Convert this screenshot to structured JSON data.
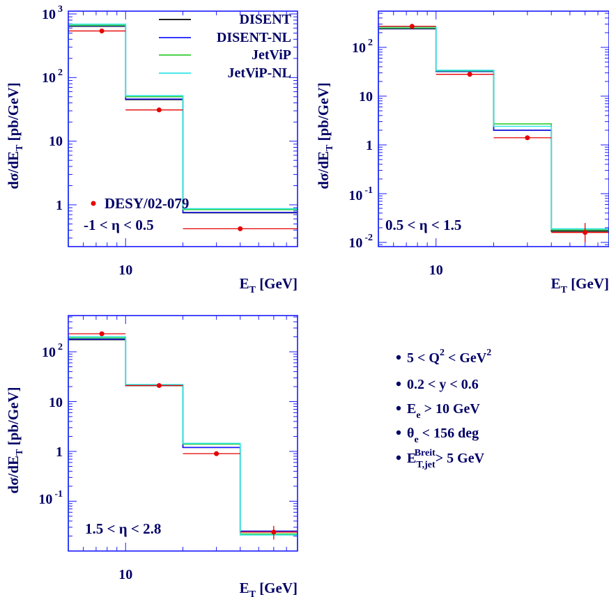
{
  "chart_data": [
    {
      "type": "step",
      "panel": "eta_low",
      "region_label": "-1 < η < 0.5",
      "xlabel": "E_T [GeV]",
      "ylabel": "dσ/dE_T [pb/GeV]",
      "xscale": "log",
      "yscale": "log",
      "xlim": [
        5,
        80
      ],
      "ylim": [
        0.28,
        1000
      ],
      "x_tick_labels": [
        "10"
      ],
      "y_tick_labels": [
        "1",
        "10",
        "10^2",
        "10^3"
      ],
      "bin_edges": [
        5,
        10,
        20,
        80
      ],
      "series": [
        {
          "name": "DISENT",
          "values": [
            640,
            45,
            0.75
          ]
        },
        {
          "name": "DISENT-NL",
          "values": [
            650,
            46,
            0.76
          ]
        },
        {
          "name": "JetViP",
          "values": [
            660,
            50,
            0.84
          ]
        },
        {
          "name": "JetViP-NL",
          "values": [
            690,
            52,
            0.87
          ]
        }
      ],
      "measurement": {
        "name": "DESY/02-079",
        "points": [
          {
            "x": 7.5,
            "y": 540,
            "xerr": [
              5,
              10
            ]
          },
          {
            "x": 15,
            "y": 31,
            "xerr": [
              10,
              20
            ]
          },
          {
            "x": 40,
            "y": 0.42,
            "xerr": [
              20,
              80
            ]
          }
        ]
      },
      "legend_position": "top-right"
    },
    {
      "type": "step",
      "panel": "eta_mid",
      "region_label": "0.5 < η < 1.5",
      "xlabel": "E_T [GeV]",
      "ylabel": "dσ/dE_T [pb/GeV]",
      "xscale": "log",
      "yscale": "log",
      "xlim": [
        5,
        80
      ],
      "ylim": [
        0.008,
        600
      ],
      "x_tick_labels": [
        "10"
      ],
      "y_tick_labels": [
        "10^-2",
        "10^-1",
        "1",
        "10",
        "10^2"
      ],
      "bin_edges": [
        5,
        10,
        20,
        40,
        80
      ],
      "series": [
        {
          "name": "DISENT",
          "values": [
            240,
            32,
            2.0,
            0.017
          ]
        },
        {
          "name": "DISENT-NL",
          "values": [
            245,
            32,
            2.0,
            0.018
          ]
        },
        {
          "name": "JetViP",
          "values": [
            250,
            33,
            2.7,
            0.018
          ]
        },
        {
          "name": "JetViP-NL",
          "values": [
            265,
            34,
            2.4,
            0.019
          ]
        }
      ],
      "measurement": {
        "name": "DESY/02-079",
        "points": [
          {
            "x": 7.5,
            "y": 270,
            "xerr": [
              5,
              10
            ]
          },
          {
            "x": 15,
            "y": 28,
            "xerr": [
              10,
              20
            ]
          },
          {
            "x": 30,
            "y": 1.4,
            "xerr": [
              20,
              40
            ]
          },
          {
            "x": 60,
            "y": 0.016,
            "xerr": [
              40,
              80
            ],
            "yerr": [
              0.01,
              0.025
            ]
          }
        ]
      }
    },
    {
      "type": "step",
      "panel": "eta_high",
      "region_label": "1.5 < η < 2.8",
      "xlabel": "E_T [GeV]",
      "ylabel": "dσ/dE_T [pb/GeV]",
      "xscale": "log",
      "yscale": "log",
      "xlim": [
        5,
        80
      ],
      "ylim": [
        0.008,
        600
      ],
      "x_tick_labels": [
        "10"
      ],
      "y_tick_labels": [
        "10^-1",
        "1",
        "10",
        "10^2"
      ],
      "bin_edges": [
        5,
        10,
        20,
        40,
        80
      ],
      "series": [
        {
          "name": "DISENT",
          "values": [
            175,
            21,
            1.2,
            0.025
          ]
        },
        {
          "name": "DISENT-NL",
          "values": [
            180,
            21,
            1.2,
            0.025
          ]
        },
        {
          "name": "JetViP",
          "values": [
            190,
            21,
            1.4,
            0.022
          ]
        },
        {
          "name": "JetViP-NL",
          "values": [
            200,
            22,
            1.45,
            0.021
          ]
        }
      ],
      "measurement": {
        "name": "DESY/02-079",
        "points": [
          {
            "x": 7.5,
            "y": 230,
            "xerr": [
              5,
              10
            ]
          },
          {
            "x": 15,
            "y": 21,
            "xerr": [
              10,
              20
            ]
          },
          {
            "x": 30,
            "y": 0.9,
            "xerr": [
              20,
              40
            ]
          },
          {
            "x": 60,
            "y": 0.024,
            "xerr": [
              40,
              80
            ],
            "yerr": [
              0.017,
              0.032
            ]
          }
        ]
      }
    }
  ],
  "series_colors": {
    "DISENT": "#000000",
    "DISENT-NL": "#1a1aff",
    "JetViP": "#33cc33",
    "JetViP-NL": "#33e6e6",
    "measurement": "#e60000"
  },
  "legend": {
    "entries": [
      "DISENT",
      "DISENT-NL",
      "JetViP",
      "JetViP-NL"
    ],
    "data_label": "DESY/02-079"
  },
  "cuts": [
    {
      "text": "5 < Q",
      "sup": "2",
      "tail": " < GeV",
      "sup2": "2"
    },
    {
      "text": "0.2 < y < 0.6"
    },
    {
      "text": "E",
      "sub": "e",
      "tail": " > 10 GeV"
    },
    {
      "text": "θ",
      "sub": "e",
      "tail": " < 156 deg"
    },
    {
      "text": "E",
      "sub": "T,jet",
      "sup": "Breit",
      "tail": "> 5 GeV"
    }
  ]
}
